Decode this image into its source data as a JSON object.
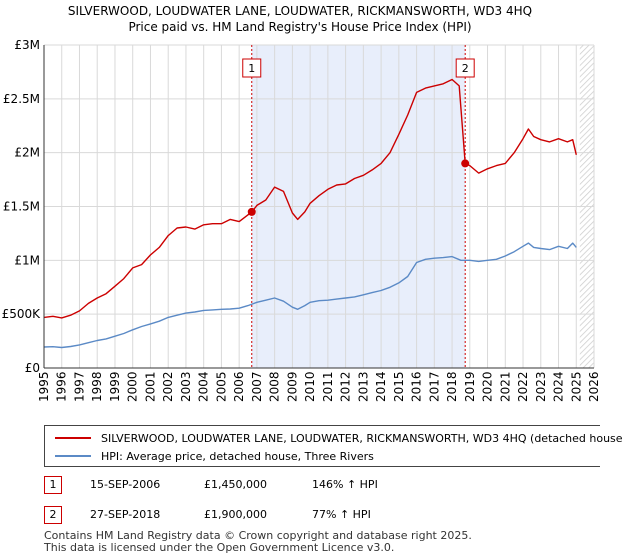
{
  "chart_data": {
    "type": "line",
    "title": "SILVERWOOD, LOUDWATER LANE, LOUDWATER, RICKMANSWORTH, WD3 4HQ",
    "subtitle": "Price paid vs. HM Land Registry's House Price Index (HPI)",
    "xlim": [
      1995,
      2026
    ],
    "ylim": [
      0,
      3000000
    ],
    "x_ticks": [
      1995,
      1996,
      1997,
      1998,
      1999,
      2000,
      2001,
      2002,
      2003,
      2004,
      2005,
      2006,
      2007,
      2008,
      2009,
      2010,
      2011,
      2012,
      2013,
      2014,
      2015,
      2016,
      2017,
      2018,
      2019,
      2020,
      2021,
      2022,
      2023,
      2024,
      2025,
      2026
    ],
    "y_ticks": [
      0,
      500000,
      1000000,
      1500000,
      2000000,
      2500000,
      3000000
    ],
    "y_tick_labels": [
      "£0",
      "£500K",
      "£1M",
      "£1.5M",
      "£2M",
      "£2.5M",
      "£3M"
    ],
    "grid": true,
    "series": [
      {
        "name": "SILVERWOOD, LOUDWATER LANE, LOUDWATER, RICKMANSWORTH, WD3 4HQ (detached house",
        "color": "#cc0000",
        "x": [
          1995,
          1995.5,
          1996,
          1996.5,
          1997,
          1997.5,
          1998,
          1998.5,
          1999,
          1999.5,
          2000,
          2000.5,
          2001,
          2001.5,
          2002,
          2002.5,
          2003,
          2003.5,
          2004,
          2004.5,
          2005,
          2005.5,
          2006,
          2006.71,
          2007,
          2007.5,
          2008,
          2008.5,
          2009,
          2009.3,
          2009.7,
          2010,
          2010.5,
          2011,
          2011.5,
          2012,
          2012.5,
          2013,
          2013.5,
          2014,
          2014.5,
          2015,
          2015.5,
          2016,
          2016.5,
          2017,
          2017.5,
          2018,
          2018.4,
          2018.6,
          2018.74,
          2019,
          2019.5,
          2020,
          2020.5,
          2021,
          2021.5,
          2022,
          2022.3,
          2022.6,
          2023,
          2023.5,
          2024,
          2024.5,
          2024.8,
          2025
        ],
        "values": [
          470000,
          480000,
          465000,
          490000,
          530000,
          600000,
          650000,
          690000,
          760000,
          830000,
          930000,
          960000,
          1050000,
          1120000,
          1230000,
          1300000,
          1310000,
          1290000,
          1330000,
          1340000,
          1340000,
          1380000,
          1360000,
          1450000,
          1510000,
          1560000,
          1680000,
          1640000,
          1440000,
          1380000,
          1450000,
          1530000,
          1600000,
          1660000,
          1700000,
          1710000,
          1760000,
          1790000,
          1840000,
          1900000,
          2000000,
          2170000,
          2350000,
          2560000,
          2600000,
          2620000,
          2640000,
          2680000,
          2620000,
          2200000,
          1900000,
          1880000,
          1810000,
          1850000,
          1880000,
          1900000,
          2000000,
          2130000,
          2220000,
          2150000,
          2120000,
          2100000,
          2130000,
          2100000,
          2120000,
          1980000
        ]
      },
      {
        "name": "HPI: Average price, detached house, Three Rivers",
        "color": "#5b8ac6",
        "x": [
          1995,
          1995.5,
          1996,
          1996.5,
          1997,
          1997.5,
          1998,
          1998.5,
          1999,
          1999.5,
          2000,
          2000.5,
          2001,
          2001.5,
          2002,
          2002.5,
          2003,
          2003.5,
          2004,
          2004.5,
          2005,
          2005.5,
          2006,
          2006.5,
          2007,
          2007.5,
          2008,
          2008.5,
          2009,
          2009.3,
          2009.7,
          2010,
          2010.5,
          2011,
          2011.5,
          2012,
          2012.5,
          2013,
          2013.5,
          2014,
          2014.5,
          2015,
          2015.5,
          2016,
          2016.5,
          2017,
          2017.5,
          2018,
          2018.5,
          2019,
          2019.5,
          2020,
          2020.5,
          2021,
          2021.5,
          2022,
          2022.3,
          2022.6,
          2023,
          2023.5,
          2024,
          2024.5,
          2024.8,
          2025
        ],
        "values": [
          195000,
          198000,
          190000,
          200000,
          215000,
          235000,
          255000,
          270000,
          295000,
          320000,
          355000,
          385000,
          410000,
          435000,
          470000,
          490000,
          510000,
          520000,
          535000,
          540000,
          545000,
          548000,
          555000,
          580000,
          610000,
          630000,
          650000,
          620000,
          565000,
          545000,
          580000,
          610000,
          625000,
          630000,
          640000,
          650000,
          660000,
          680000,
          700000,
          720000,
          750000,
          790000,
          850000,
          980000,
          1010000,
          1020000,
          1025000,
          1035000,
          1000000,
          1000000,
          990000,
          1000000,
          1010000,
          1040000,
          1080000,
          1130000,
          1160000,
          1120000,
          1110000,
          1100000,
          1130000,
          1110000,
          1160000,
          1120000
        ]
      }
    ],
    "annotations": [
      {
        "label": "1",
        "x": 2006.71,
        "y": 1450000
      },
      {
        "label": "2",
        "x": 2018.74,
        "y": 1900000
      }
    ],
    "shaded_region": [
      2006.71,
      2018.74
    ]
  },
  "legend": {
    "property_label": "SILVERWOOD, LOUDWATER LANE, LOUDWATER, RICKMANSWORTH, WD3 4HQ (detached house",
    "hpi_label": "HPI: Average price, detached house, Three Rivers"
  },
  "sales": [
    {
      "num": "1",
      "date": "15-SEP-2006",
      "price": "£1,450,000",
      "hpi": "146% ↑ HPI"
    },
    {
      "num": "2",
      "date": "27-SEP-2018",
      "price": "£1,900,000",
      "hpi": "77% ↑ HPI"
    }
  ],
  "footer": {
    "line1": "Contains HM Land Registry data © Crown copyright and database right 2025.",
    "line2": "This data is licensed under the Open Government Licence v3.0."
  },
  "colors": {
    "property": "#cc0000",
    "hpi": "#5b8ac6",
    "shade": "#e8eefb",
    "grid": "#d9d9d9",
    "future_hatch": "#cccccc"
  }
}
